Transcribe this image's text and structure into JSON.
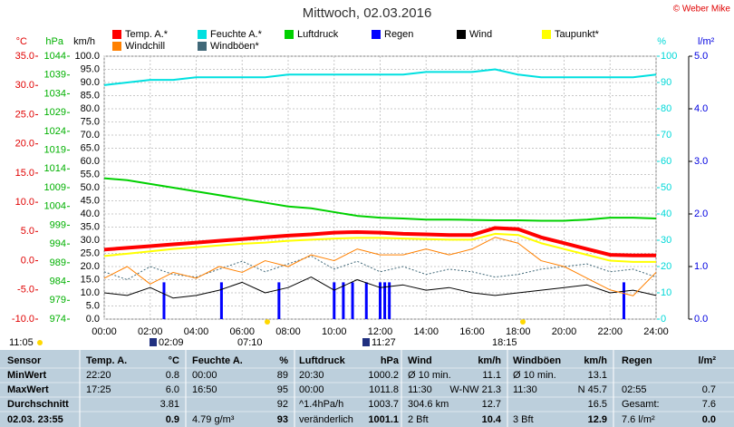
{
  "chart_data": {
    "type": "line",
    "title": "Mittwoch, 02.03.2016",
    "credit": "© Weber Mike",
    "xlim": [
      0,
      24
    ],
    "xticks": [
      {
        "value": 0,
        "label": "00:00"
      },
      {
        "value": 2,
        "label": "02:00"
      },
      {
        "value": 4,
        "label": "04:00"
      },
      {
        "value": 6,
        "label": "06:00"
      },
      {
        "value": 8,
        "label": "08:00"
      },
      {
        "value": 10,
        "label": "10:00"
      },
      {
        "value": 12,
        "label": "12:00"
      },
      {
        "value": 14,
        "label": "14:00"
      },
      {
        "value": 16,
        "label": "16:00"
      },
      {
        "value": 18,
        "label": "18:00"
      },
      {
        "value": 20,
        "label": "20:00"
      },
      {
        "value": 22,
        "label": "22:00"
      },
      {
        "value": 24,
        "label": "24:00"
      }
    ],
    "grid": true,
    "axes": [
      {
        "name": "°C",
        "color": "#e00000",
        "lim": [
          -10,
          35
        ],
        "ticks": [
          {
            "value": -10,
            "label": "-10.0"
          },
          {
            "value": -5,
            "label": "-5.0"
          },
          {
            "value": 0,
            "label": "0.0"
          },
          {
            "value": 5,
            "label": "5.0"
          },
          {
            "value": 10,
            "label": "10.0"
          },
          {
            "value": 15,
            "label": "15.0"
          },
          {
            "value": 20,
            "label": "20.0"
          },
          {
            "value": 25,
            "label": "25.0"
          },
          {
            "value": 30,
            "label": "30.0"
          },
          {
            "value": 35,
            "label": "35.0"
          }
        ]
      },
      {
        "name": "hPa",
        "color": "#00b000",
        "lim": [
          974,
          1044
        ],
        "ticks": [
          974,
          979,
          984,
          989,
          994,
          999,
          1004,
          1009,
          1014,
          1019,
          1024,
          1029,
          1034,
          1039,
          1044
        ]
      },
      {
        "name": "km/h",
        "color": "#000000",
        "lim": [
          0,
          100
        ],
        "ticks": [
          {
            "value": 0,
            "label": "0.0"
          },
          {
            "value": 5,
            "label": "5.0"
          },
          {
            "value": 10,
            "label": "10.0"
          },
          {
            "value": 15,
            "label": "15.0"
          },
          {
            "value": 20,
            "label": "20.0"
          },
          {
            "value": 25,
            "label": "25.0"
          },
          {
            "value": 30,
            "label": "30.0"
          },
          {
            "value": 35,
            "label": "35.0"
          },
          {
            "value": 40,
            "label": "40.0"
          },
          {
            "value": 45,
            "label": "45.0"
          },
          {
            "value": 50,
            "label": "50.0"
          },
          {
            "value": 55,
            "label": "55.0"
          },
          {
            "value": 60,
            "label": "60.0"
          },
          {
            "value": 65,
            "label": "65.0"
          },
          {
            "value": 70,
            "label": "70.0"
          },
          {
            "value": 75,
            "label": "75.0"
          },
          {
            "value": 80,
            "label": "80.0"
          },
          {
            "value": 85,
            "label": "85.0"
          },
          {
            "value": 90,
            "label": "90.0"
          },
          {
            "value": 95,
            "label": "95.0"
          },
          {
            "value": 100,
            "label": "100.0"
          }
        ]
      },
      {
        "name": "%",
        "color": "#00d8d8",
        "lim": [
          0,
          100
        ],
        "ticks": [
          0,
          10,
          20,
          30,
          40,
          50,
          60,
          70,
          80,
          90,
          100
        ]
      },
      {
        "name": "l/m²",
        "color": "#0000e0",
        "lim": [
          0,
          5
        ],
        "ticks": [
          {
            "value": 0,
            "label": "0.0"
          },
          {
            "value": 1,
            "label": "1.0"
          },
          {
            "value": 2,
            "label": "2.0"
          },
          {
            "value": 3,
            "label": "3.0"
          },
          {
            "value": 4,
            "label": "4.0"
          },
          {
            "value": 5,
            "label": "5.0"
          }
        ]
      }
    ],
    "x": [
      0,
      1,
      2,
      3,
      4,
      5,
      6,
      7,
      8,
      9,
      10,
      11,
      12,
      13,
      14,
      15,
      16,
      17,
      18,
      19,
      20,
      21,
      22,
      23,
      24
    ],
    "series": [
      {
        "name": "Temp. A.*",
        "color": "#ff0000",
        "axis": "°C",
        "values": [
          1.9,
          2.2,
          2.5,
          2.8,
          3.1,
          3.4,
          3.7,
          4.0,
          4.3,
          4.5,
          4.8,
          4.9,
          4.8,
          4.6,
          4.5,
          4.4,
          4.4,
          5.6,
          5.4,
          4.0,
          3.0,
          2.0,
          1.0,
          0.9,
          0.9
        ]
      },
      {
        "name": "Feuchte A.*",
        "color": "#00e0e0",
        "axis": "%",
        "values": [
          89,
          90,
          91,
          91,
          92,
          92,
          92,
          92,
          93,
          93,
          93,
          93,
          93,
          93,
          94,
          94,
          94,
          95,
          93,
          92,
          92,
          92,
          92,
          92,
          93
        ]
      },
      {
        "name": "Luftdruck",
        "color": "#00d000",
        "axis": "hPa",
        "values": [
          1011.5,
          1011,
          1010,
          1009,
          1008,
          1007,
          1006,
          1005,
          1004,
          1003.5,
          1002.5,
          1001.5,
          1001,
          1000.8,
          1000.5,
          1000.5,
          1000.4,
          1000.3,
          1000.3,
          1000.2,
          1000.2,
          1000.5,
          1001,
          1001,
          1000.8
        ]
      },
      {
        "name": "Regen",
        "color": "#0000ff",
        "axis": "l/m²",
        "type": "bar",
        "x": [
          2.6,
          5.1,
          7.6,
          10.0,
          10.4,
          10.8,
          11.4,
          12.0,
          12.2,
          12.4,
          22.6
        ],
        "values": [
          0.7,
          0.7,
          0.7,
          0.7,
          0.7,
          0.7,
          0.7,
          0.7,
          0.7,
          0.7,
          0.7
        ]
      },
      {
        "name": "Wind",
        "color": "#000000",
        "axis": "km/h",
        "values": [
          10,
          9,
          12,
          8,
          9,
          11,
          14,
          10,
          12,
          16,
          11,
          15,
          12,
          13,
          11,
          12,
          10,
          9,
          10,
          11,
          12,
          13,
          10,
          11,
          9
        ]
      },
      {
        "name": "Taupunkt*",
        "color": "#ffff00",
        "axis": "°C",
        "values": [
          0.8,
          1.2,
          1.6,
          2.0,
          2.3,
          2.6,
          2.9,
          3.1,
          3.4,
          3.6,
          3.8,
          3.9,
          3.9,
          3.8,
          3.7,
          3.6,
          3.6,
          4.6,
          4.4,
          3.0,
          2.0,
          1.0,
          0.0,
          -0.2,
          -0.2
        ]
      },
      {
        "name": "Windchill",
        "color": "#ff8000",
        "axis": "°C",
        "values": [
          -3,
          -1,
          -4,
          -2,
          -3,
          -1,
          -2,
          0,
          -1,
          1,
          0,
          2,
          1,
          1,
          2,
          1,
          2,
          4,
          3,
          0,
          -1,
          -3,
          -5,
          -6,
          -2
        ]
      },
      {
        "name": "Windböen*",
        "color": "#406878",
        "axis": "km/h",
        "dashed": true,
        "values": [
          18,
          15,
          20,
          17,
          16,
          19,
          22,
          18,
          21,
          24,
          19,
          22,
          18,
          20,
          17,
          19,
          18,
          16,
          17,
          19,
          20,
          21,
          18,
          19,
          16
        ]
      }
    ],
    "astro": [
      "11:05",
      "02:09",
      "07:10",
      "11:27",
      "18:15"
    ]
  },
  "table": {
    "header": [
      "Sensor",
      "Temp. A.",
      "°C",
      "Feuchte A.",
      "%",
      "Luftdruck",
      "hPa",
      "Wind",
      "km/h",
      "Windböen",
      "km/h",
      "Regen",
      "l/m²"
    ],
    "rows": [
      [
        "MinWert",
        "22:20",
        "0.8",
        "00:00",
        "89",
        "20:30",
        "1000.2",
        "Ø 10 min.",
        "11.1",
        "Ø 10 min.",
        "13.1",
        null,
        null
      ],
      [
        "MaxWert",
        "17:25",
        "6.0",
        "16:50",
        "95",
        "00:00",
        "1011.8",
        "11:30",
        "W-NW 21.3",
        "11:30",
        "N 45.7",
        "02:55",
        "0.7"
      ],
      [
        "Durchschnitt",
        null,
        "3.81",
        null,
        "92",
        "^1.4hPa/h",
        "1003.7",
        "304.6 km",
        "12.7",
        null,
        "16.5",
        "Gesamt:",
        "7.6"
      ],
      [
        "02.03. 23:55",
        null,
        "0.9",
        "4.79 g/m³",
        "93",
        "veränderlich",
        "1001.1",
        "2 Bft",
        "10.4",
        "3 Bft",
        "12.9",
        "7.6 l/m²",
        "0.0"
      ]
    ]
  }
}
